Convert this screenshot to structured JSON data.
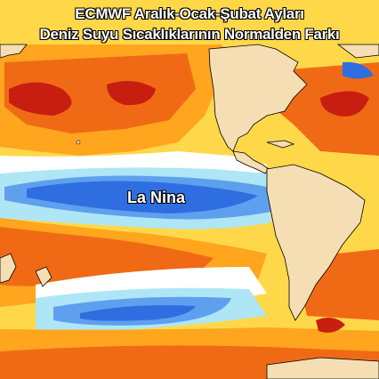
{
  "title": {
    "line1": "ECMWF Aralık-Ocak-Şubat Ayları",
    "line2": "Deniz Suyu Sıcaklıklarının Normalden Farkı"
  },
  "annotation": "La Nina",
  "colors": {
    "land": "#f5deb3",
    "warm_strong": "#c81e10",
    "warm": "#f06a16",
    "warm_mild": "#ffa51e",
    "warm_weak": "#ffd84a",
    "neutral": "#ffffff",
    "cool_weak": "#aee6f6",
    "cool": "#5ea0ee",
    "cool_strong": "#2f6ee0",
    "cool_deep": "#1f4fc8"
  }
}
